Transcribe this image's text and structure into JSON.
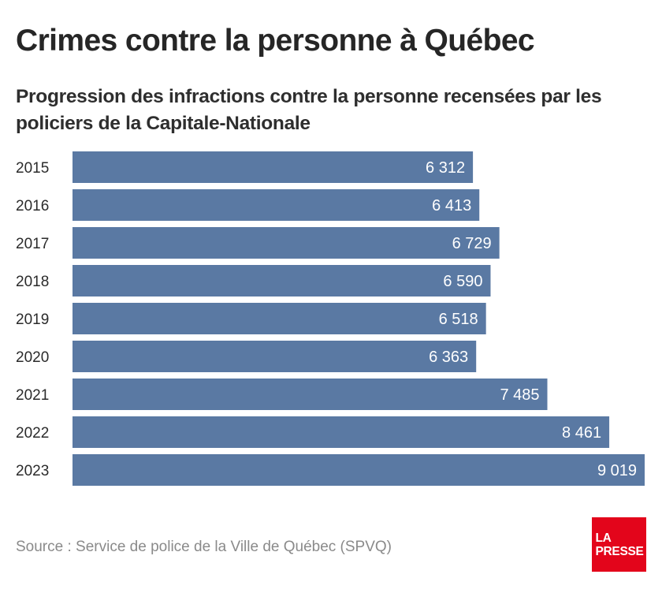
{
  "title": "Crimes contre la personne à Québec",
  "subtitle": "Progression des infractions contre la personne recensées par les policiers de la Capitale-Nationale",
  "source": "Source : Service de police de la Ville de Québec (SPVQ)",
  "logo": {
    "line1": "LA",
    "line2": "PRESSE"
  },
  "colors": {
    "bar": "#5a79a3",
    "logo_bg": "#e3051b"
  },
  "chart_data": {
    "type": "bar",
    "orientation": "horizontal",
    "title": "Crimes contre la personne à Québec",
    "subtitle": "Progression des infractions contre la personne recensées par les policiers de la Capitale-Nationale",
    "xlabel": "",
    "ylabel": "",
    "categories": [
      "2015",
      "2016",
      "2017",
      "2018",
      "2019",
      "2020",
      "2021",
      "2022",
      "2023"
    ],
    "values": [
      6312,
      6413,
      6729,
      6590,
      6518,
      6363,
      7485,
      8461,
      9019
    ],
    "value_labels": [
      "6 312",
      "6 413",
      "6 729",
      "6 590",
      "6 518",
      "6 363",
      "7 485",
      "8 461",
      "9 019"
    ],
    "xlim": [
      0,
      9019
    ],
    "grid": false,
    "legend": "none"
  }
}
